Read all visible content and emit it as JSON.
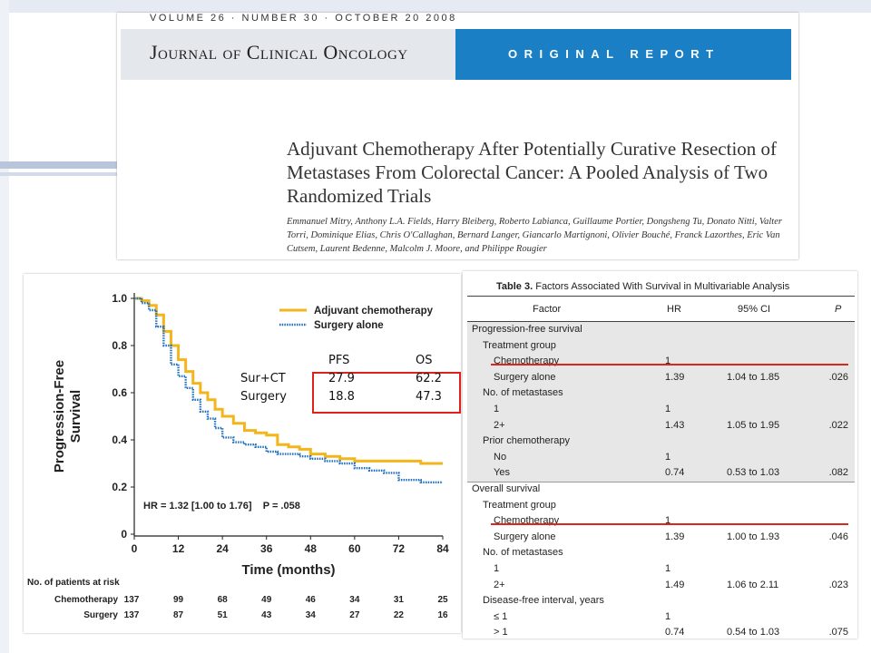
{
  "article": {
    "volume_line": "VOLUME 26 · NUMBER 30 · OCTOBER 20 2008",
    "journal": "Journal of Clinical Oncology",
    "report_type": "ORIGINAL REPORT",
    "title": "Adjuvant Chemotherapy After Potentially Curative Resection of Metastases From Colorectal Cancer: A Pooled Analysis of Two Randomized Trials",
    "authors": "Emmanuel Mitry, Anthony L.A. Fields, Harry Bleiberg, Roberto Labianca, Guillaume Portier, Dongsheng Tu, Donato Nitti, Valter Torri, Dominique Elias, Chris O'Callaghan, Bernard Langer, Giancarlo Martignoni, Olivier Bouché, Franck Lazorthes, Eric Van Cutsem, Laurent Bedenne, Malcolm J. Moore, and Philippe Rougier"
  },
  "chart_data": {
    "type": "line",
    "ylabel": "Progression-Free Survival",
    "xlabel": "Time (months)",
    "xlim": [
      0,
      84
    ],
    "ylim": [
      0,
      1.0
    ],
    "x_ticks": [
      0,
      12,
      24,
      36,
      48,
      60,
      72,
      84
    ],
    "y_ticks": [
      "0",
      "0.2",
      "0.4",
      "0.6",
      "0.8",
      "1.0"
    ],
    "legend_position": "top-right",
    "colors": {
      "chemo": "#f2b51c",
      "surgery": "#1f6fc0",
      "highlight": "#e0201a"
    },
    "series": [
      {
        "name": "Adjuvant chemotherapy",
        "x": [
          0,
          2,
          4,
          6,
          8,
          10,
          12,
          14,
          16,
          18,
          20,
          22,
          24,
          27,
          30,
          33,
          36,
          39,
          42,
          45,
          48,
          52,
          56,
          60,
          66,
          72,
          78,
          84
        ],
        "y": [
          1.0,
          0.99,
          0.97,
          0.93,
          0.86,
          0.8,
          0.74,
          0.69,
          0.64,
          0.6,
          0.57,
          0.53,
          0.5,
          0.47,
          0.44,
          0.43,
          0.42,
          0.38,
          0.37,
          0.36,
          0.34,
          0.33,
          0.32,
          0.31,
          0.31,
          0.31,
          0.3,
          0.3
        ]
      },
      {
        "name": "Surgery alone",
        "x": [
          0,
          2,
          4,
          6,
          8,
          10,
          12,
          14,
          16,
          18,
          20,
          22,
          24,
          27,
          30,
          33,
          36,
          39,
          42,
          45,
          48,
          52,
          56,
          60,
          64,
          68,
          72,
          78,
          84
        ],
        "y": [
          1.0,
          0.98,
          0.95,
          0.88,
          0.8,
          0.72,
          0.67,
          0.62,
          0.57,
          0.52,
          0.49,
          0.45,
          0.41,
          0.39,
          0.38,
          0.37,
          0.35,
          0.34,
          0.34,
          0.33,
          0.32,
          0.31,
          0.3,
          0.28,
          0.27,
          0.26,
          0.23,
          0.22,
          0.22
        ]
      }
    ],
    "annotation": "HR = 1.32 [1.00 to 1.76]    P = .058",
    "risk_table": {
      "title": "No. of patients at risk",
      "rows": [
        {
          "label": "Chemotherapy",
          "values": [
            "137",
            "99",
            "68",
            "49",
            "46",
            "34",
            "31",
            "25"
          ]
        },
        {
          "label": "Surgery",
          "values": [
            "137",
            "87",
            "51",
            "43",
            "34",
            "27",
            "22",
            "16"
          ]
        }
      ]
    },
    "stats_box": {
      "headers": [
        "PFS",
        "OS"
      ],
      "rows": [
        {
          "label": "Sur+CT",
          "pfs": "27.9",
          "os": "62.2"
        },
        {
          "label": "Surgery",
          "pfs": "18.8",
          "os": "47.3"
        }
      ]
    }
  },
  "table": {
    "number": "Table 3.",
    "title": "Factors Associated With Survival in Multivariable Analysis",
    "headers": [
      "Factor",
      "HR",
      "95% CI",
      "P"
    ],
    "rows": [
      {
        "indent": 0,
        "factor": "Progression-free survival",
        "hr": "",
        "ci": "",
        "p": ""
      },
      {
        "indent": 1,
        "factor": "Treatment group",
        "hr": "",
        "ci": "",
        "p": ""
      },
      {
        "indent": 2,
        "factor": "Chemotherapy",
        "hr": "1",
        "ci": "",
        "p": "",
        "highlight": true
      },
      {
        "indent": 2,
        "factor": "Surgery alone",
        "hr": "1.39",
        "ci": "1.04 to 1.85",
        "p": ".026"
      },
      {
        "indent": 1,
        "factor": "No. of metastases",
        "hr": "",
        "ci": "",
        "p": ""
      },
      {
        "indent": 2,
        "factor": "1",
        "hr": "1",
        "ci": "",
        "p": ""
      },
      {
        "indent": 2,
        "factor": "2+",
        "hr": "1.43",
        "ci": "1.05 to 1.95",
        "p": ".022"
      },
      {
        "indent": 1,
        "factor": "Prior chemotherapy",
        "hr": "",
        "ci": "",
        "p": ""
      },
      {
        "indent": 2,
        "factor": "No",
        "hr": "1",
        "ci": "",
        "p": ""
      },
      {
        "indent": 2,
        "factor": "Yes",
        "hr": "0.74",
        "ci": "0.53 to 1.03",
        "p": ".082"
      },
      {
        "indent": 0,
        "factor": "Overall survival",
        "hr": "",
        "ci": "",
        "p": ""
      },
      {
        "indent": 1,
        "factor": "Treatment group",
        "hr": "",
        "ci": "",
        "p": ""
      },
      {
        "indent": 2,
        "factor": "Chemotherapy",
        "hr": "1",
        "ci": "",
        "p": "",
        "highlight": true
      },
      {
        "indent": 2,
        "factor": "Surgery alone",
        "hr": "1.39",
        "ci": "1.00 to 1.93",
        "p": ".046"
      },
      {
        "indent": 1,
        "factor": "No. of metastases",
        "hr": "",
        "ci": "",
        "p": ""
      },
      {
        "indent": 2,
        "factor": "1",
        "hr": "1",
        "ci": "",
        "p": ""
      },
      {
        "indent": 2,
        "factor": "2+",
        "hr": "1.49",
        "ci": "1.06 to 2.11",
        "p": ".023"
      },
      {
        "indent": 1,
        "factor": "Disease-free interval, years",
        "hr": "",
        "ci": "",
        "p": ""
      },
      {
        "indent": 2,
        "factor": "≤ 1",
        "hr": "1",
        "ci": "",
        "p": ""
      },
      {
        "indent": 2,
        "factor": "> 1",
        "hr": "0.74",
        "ci": "0.54 to 1.03",
        "p": ".075"
      }
    ]
  }
}
